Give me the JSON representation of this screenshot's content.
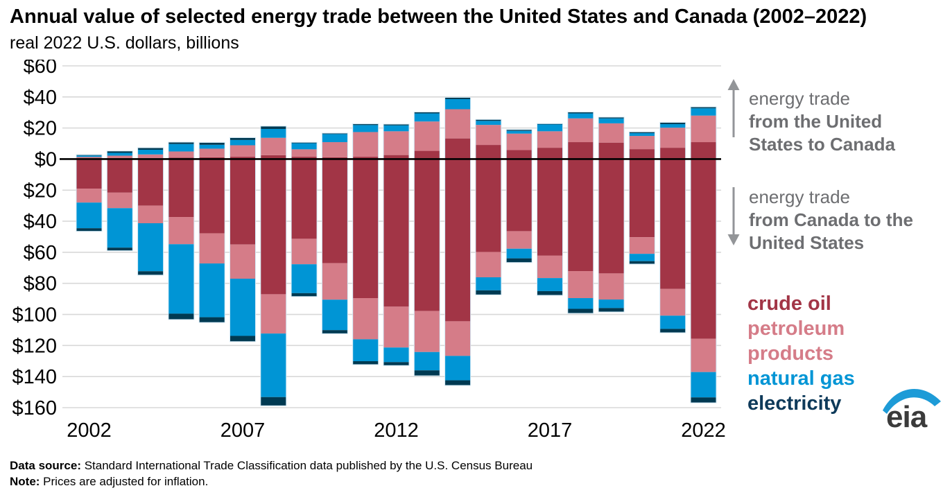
{
  "header": {
    "title": "Annual value of selected energy trade between the United States and Canada (2002–2022)",
    "subtitle": "real 2022 U.S. dollars, billions"
  },
  "chart_data": {
    "type": "bar",
    "stacked": true,
    "diverging": true,
    "title": "Annual value of selected energy trade between the United States and Canada (2002–2022)",
    "ylabel": "real 2022 U.S. dollars, billions",
    "categories": [
      2002,
      2003,
      2004,
      2005,
      2006,
      2007,
      2008,
      2009,
      2010,
      2011,
      2012,
      2013,
      2014,
      2015,
      2016,
      2017,
      2018,
      2019,
      2020,
      2021,
      2022
    ],
    "x_axis_tick_indices": [
      0,
      5,
      10,
      15,
      20
    ],
    "x_axis_tick_labels": [
      "2002",
      "2007",
      "2012",
      "2017",
      "2022"
    ],
    "y_axis": {
      "ticks": [
        60,
        40,
        20,
        0,
        -20,
        -40,
        -60,
        -80,
        -100,
        -120,
        -140,
        -160
      ],
      "tick_labels": [
        "$60",
        "$40",
        "$20",
        "$0",
        "$20",
        "$40",
        "$60",
        "$80",
        "$100",
        "$120",
        "$140",
        "$160"
      ],
      "unit": "billion real 2022 U.S. dollars",
      "note": "values below the zero line are shown as absolute dollars"
    },
    "ylim": [
      -160,
      60
    ],
    "grid": true,
    "series_us_to_canada": [
      {
        "name": "crude oil",
        "color": "#A23546",
        "values": [
          0.3,
          0.4,
          0.5,
          1.0,
          1.2,
          1.5,
          2.5,
          1.5,
          1.2,
          1.5,
          2.6,
          5.3,
          13.3,
          9.1,
          5.8,
          7.3,
          10.9,
          10.6,
          6.4,
          7.3,
          10.9
        ]
      },
      {
        "name": "petroleum products",
        "color": "#D57C88",
        "values": [
          1.1,
          1.8,
          2.5,
          3.9,
          5.5,
          7.4,
          11.2,
          4.8,
          9.7,
          15.9,
          15.3,
          18.9,
          18.8,
          12.9,
          10.6,
          10.6,
          15.3,
          12.4,
          8.5,
          12.9,
          17.1
        ]
      },
      {
        "name": "natural gas",
        "color": "#0095D5",
        "values": [
          0.9,
          1.8,
          3.0,
          4.8,
          2.5,
          3.4,
          5.7,
          3.9,
          5.2,
          4.5,
          3.8,
          5.2,
          6.5,
          2.6,
          1.8,
          4.4,
          3.2,
          3.2,
          1.8,
          2.3,
          4.7
        ]
      },
      {
        "name": "electricity",
        "color": "#003A52",
        "values": [
          0.5,
          1.2,
          1.3,
          1.2,
          1.5,
          1.5,
          1.8,
          0.6,
          0.6,
          0.8,
          0.8,
          0.9,
          1.1,
          0.9,
          0.8,
          0.5,
          0.9,
          0.8,
          0.8,
          1.1,
          0.9
        ]
      }
    ],
    "series_canada_to_us": [
      {
        "name": "crude oil",
        "color": "#A23546",
        "values": [
          19.0,
          21.6,
          30.0,
          37.3,
          47.8,
          55.0,
          87.0,
          51.3,
          67.0,
          89.5,
          95.0,
          97.8,
          104.4,
          59.8,
          46.4,
          62.2,
          72.1,
          73.6,
          50.3,
          83.6,
          115.7
        ]
      },
      {
        "name": "petroleum products",
        "color": "#D57C88",
        "values": [
          9.0,
          10.0,
          11.3,
          17.5,
          19.4,
          22.0,
          25.3,
          16.4,
          23.5,
          26.5,
          26.3,
          26.4,
          22.3,
          16.3,
          11.3,
          14.4,
          17.4,
          16.8,
          10.7,
          17.2,
          21.4
        ]
      },
      {
        "name": "natural gas",
        "color": "#0095D5",
        "values": [
          16.5,
          25.4,
          30.9,
          44.7,
          34.6,
          36.8,
          40.9,
          18.6,
          19.6,
          14.1,
          9.4,
          11.8,
          15.7,
          8.4,
          6.2,
          8.4,
          6.9,
          5.5,
          4.7,
          8.5,
          16.3
        ]
      },
      {
        "name": "electricity",
        "color": "#003A52",
        "values": [
          2.0,
          2.0,
          2.5,
          3.8,
          3.4,
          3.7,
          5.6,
          2.2,
          2.3,
          2.2,
          2.2,
          3.5,
          3.3,
          2.9,
          2.7,
          2.7,
          2.9,
          2.5,
          1.9,
          2.5,
          3.5
        ]
      }
    ],
    "style": {
      "gridline_color": "#D8D8D8",
      "zero_line_color": "#000000",
      "bar_outline": "#D3E9F6"
    },
    "legend_position": "right"
  },
  "annotations": {
    "us_to_canada": {
      "line1": "energy trade",
      "line2": "from the United",
      "line3": "States to Canada"
    },
    "canada_to_us": {
      "line1": "energy trade",
      "line2": "from Canada to the",
      "line3": "United States"
    },
    "text_color": "#6D6E71",
    "arrow_color": "#939598"
  },
  "legend": {
    "items": [
      {
        "id": "crude-oil",
        "label": "crude oil",
        "color": "#A23546"
      },
      {
        "id": "petroleum-products",
        "label": "petroleum products",
        "color": "#D57C88"
      },
      {
        "id": "natural-gas",
        "label": "natural gas",
        "color": "#0095D5"
      },
      {
        "id": "electricity",
        "label": "electricity",
        "color": "#0E3A5A"
      }
    ]
  },
  "footer": {
    "source_label": "Data source:",
    "source_text": " Standard International Trade Classification data published by the U.S. Census Bureau",
    "note_label": "Note:",
    "note_text": " Prices are adjusted for inflation."
  },
  "logo": {
    "text": "eia",
    "accent_color": "#1D9BD7",
    "text_color": "#3B3B3B"
  }
}
